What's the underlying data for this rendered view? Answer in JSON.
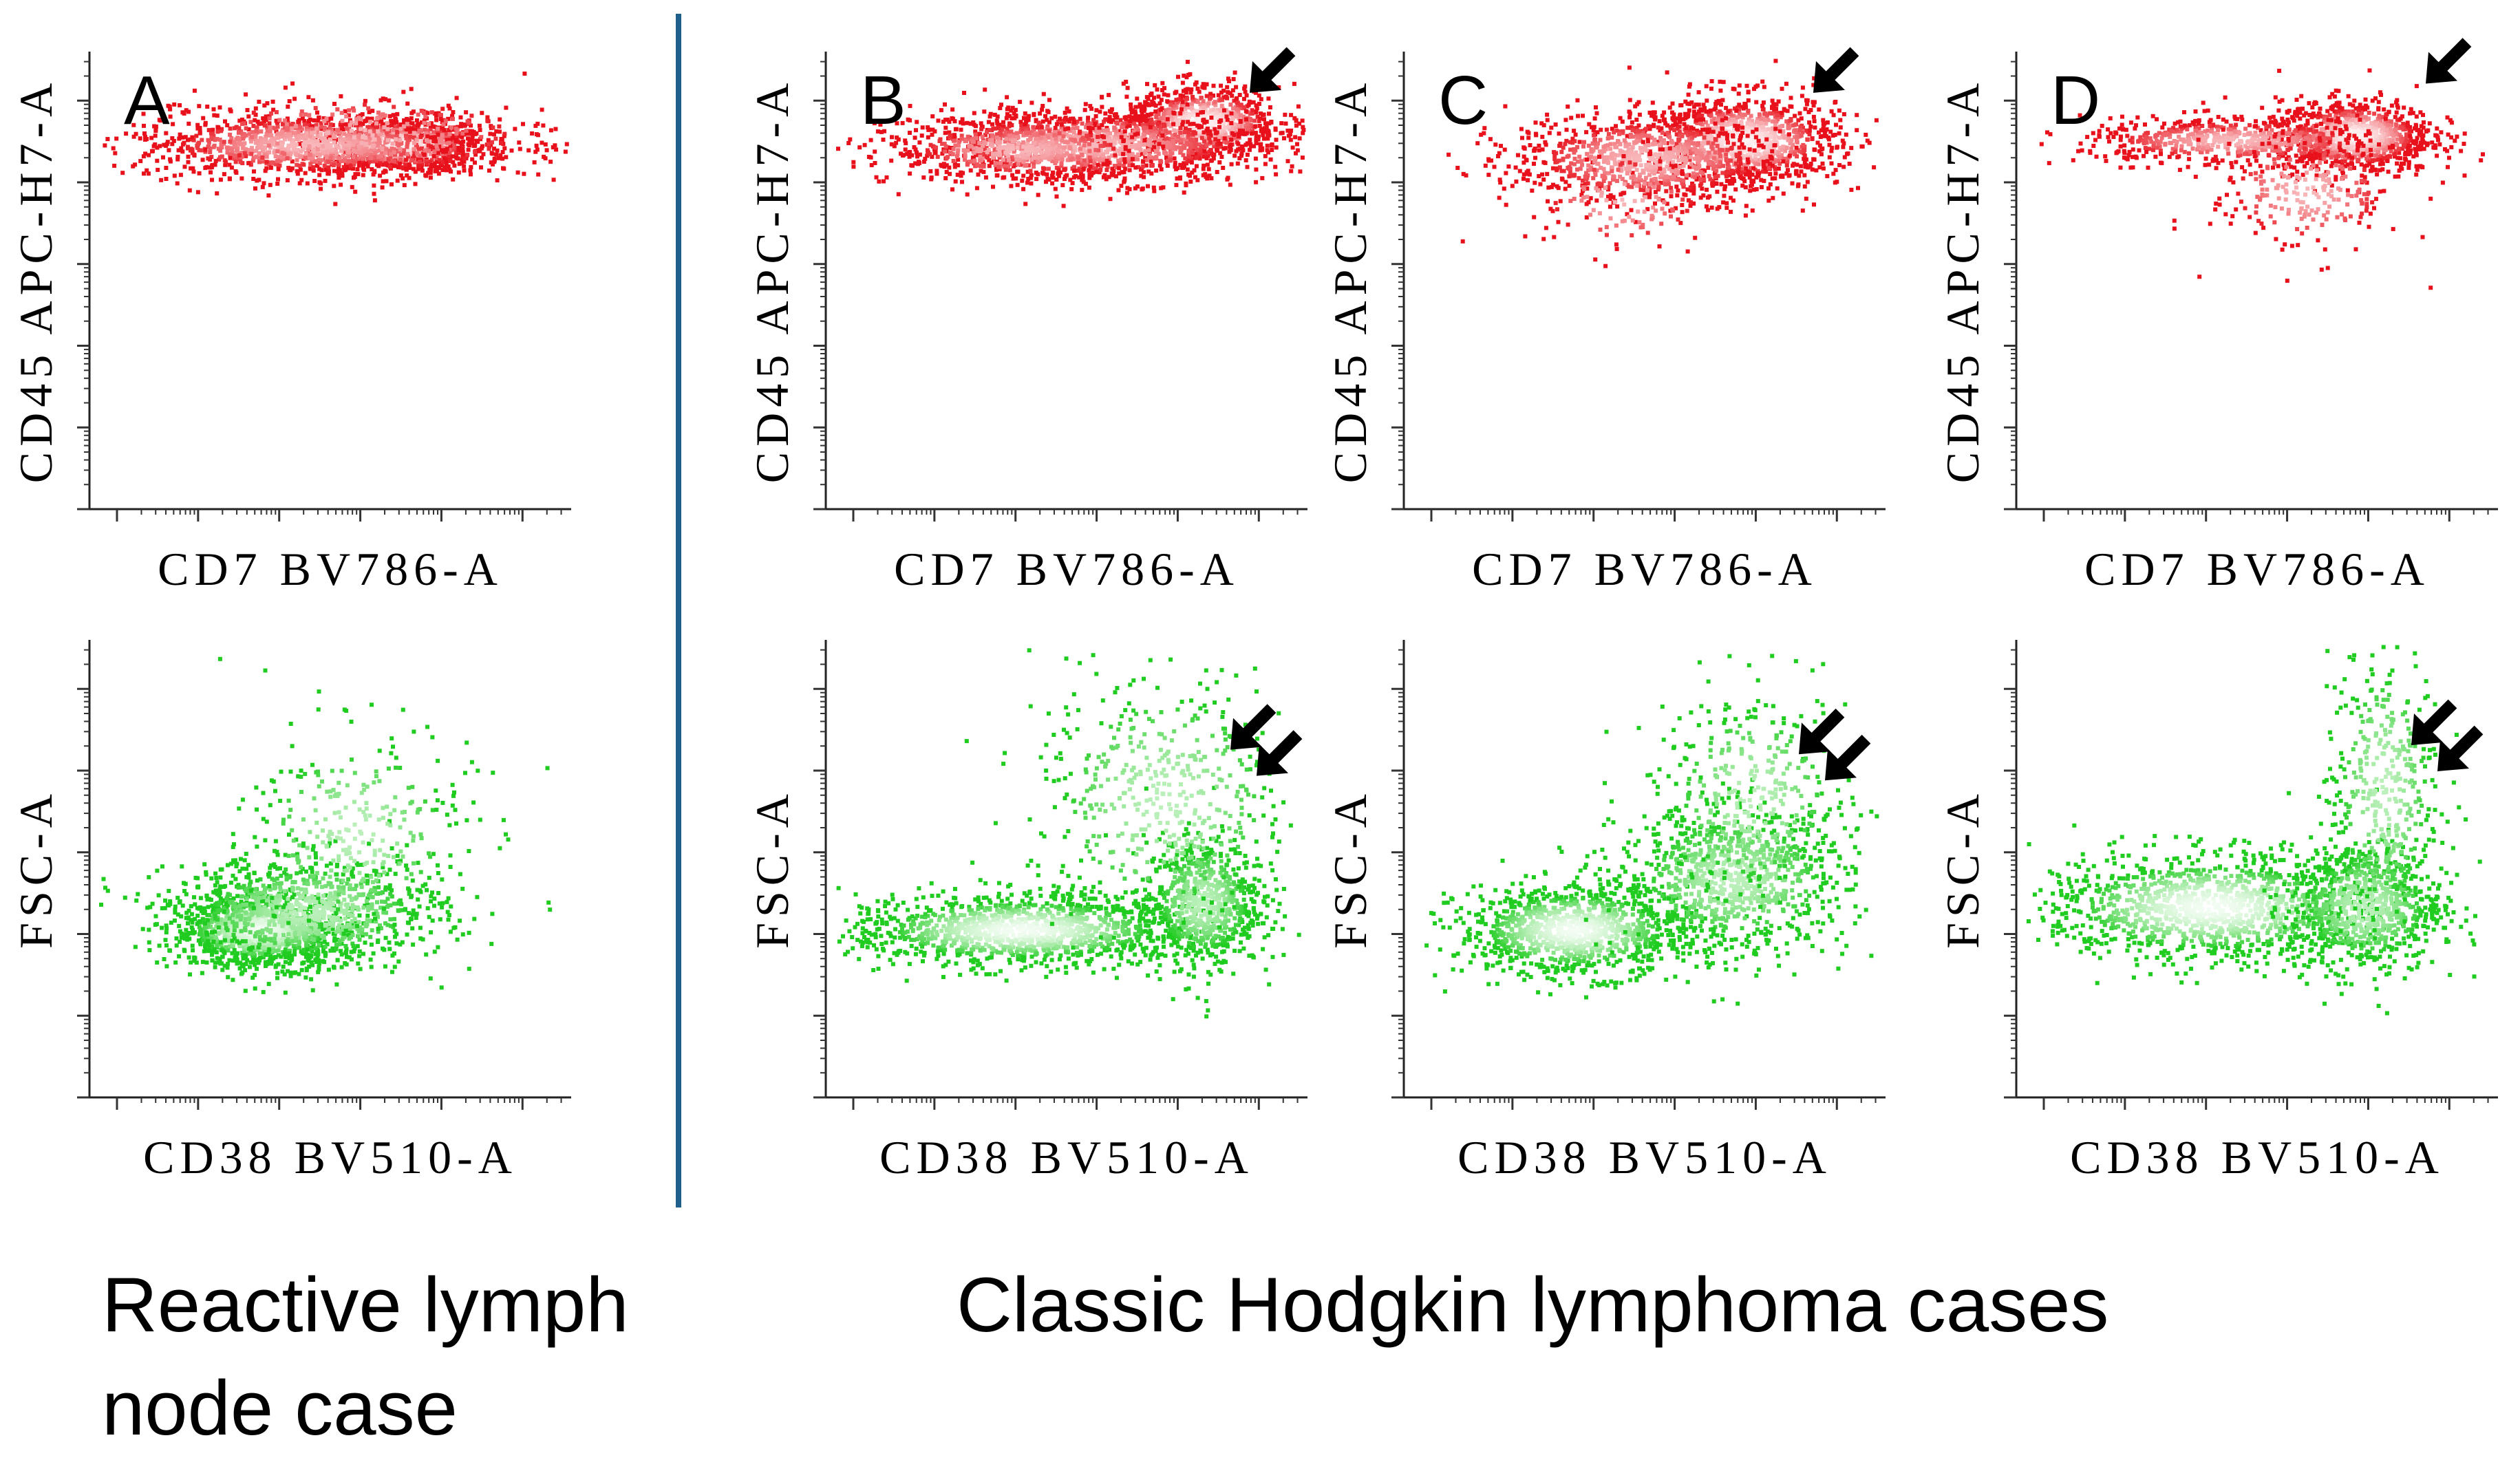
{
  "chart_data": [
    {
      "type": "scatter",
      "panel": "A",
      "letter": "A",
      "row": "top",
      "xlabel": "CD7 BV786-A",
      "ylabel": "CD45 APC-H7-A",
      "color": "#e8101a",
      "xlim": [
        0,
        100
      ],
      "ylim": [
        0,
        100
      ],
      "clusters": [
        {
          "cx": 64,
          "cy": 80,
          "sx": 9,
          "sy": 3,
          "n": 900
        },
        {
          "cx": 45,
          "cy": 80,
          "sx": 18,
          "sy": 3.5,
          "n": 1100
        },
        {
          "cx": 55,
          "cy": 82,
          "sx": 22,
          "sy": 5,
          "n": 300
        }
      ],
      "arrows": []
    },
    {
      "type": "scatter",
      "panel": "B",
      "letter": "B",
      "row": "top",
      "xlabel": "CD7 BV786-A",
      "ylabel": "CD45 APC-H7-A",
      "color": "#e8101a",
      "xlim": [
        0,
        100
      ],
      "ylim": [
        0,
        100
      ],
      "clusters": [
        {
          "cx": 78,
          "cy": 85,
          "sx": 8,
          "sy": 4,
          "n": 800
        },
        {
          "cx": 55,
          "cy": 80,
          "sx": 18,
          "sy": 4,
          "n": 1300
        },
        {
          "cx": 40,
          "cy": 79,
          "sx": 14,
          "sy": 3.5,
          "n": 500
        }
      ],
      "arrows": [
        {
          "x": 88,
          "y": 91,
          "double": false
        }
      ]
    },
    {
      "type": "scatter",
      "panel": "C",
      "letter": "C",
      "row": "top",
      "xlabel": "CD7 BV786-A",
      "ylabel": "CD45 APC-H7-A",
      "color": "#e8101a",
      "xlim": [
        0,
        100
      ],
      "ylim": [
        0,
        100
      ],
      "clusters": [
        {
          "cx": 70,
          "cy": 81,
          "sx": 10,
          "sy": 5,
          "n": 1000
        },
        {
          "cx": 50,
          "cy": 77,
          "sx": 14,
          "sy": 5,
          "n": 900
        },
        {
          "cx": 45,
          "cy": 68,
          "sx": 10,
          "sy": 6,
          "n": 120
        }
      ],
      "arrows": [
        {
          "x": 85,
          "y": 91,
          "double": false
        }
      ]
    },
    {
      "type": "scatter",
      "panel": "D",
      "letter": "D",
      "row": "top",
      "xlabel": "CD7 BV786-A",
      "ylabel": "CD45 APC-H7-A",
      "color": "#e8101a",
      "xlim": [
        0,
        100
      ],
      "ylim": [
        0,
        100
      ],
      "clusters": [
        {
          "cx": 70,
          "cy": 82,
          "sx": 8,
          "sy": 4,
          "n": 900
        },
        {
          "cx": 45,
          "cy": 81,
          "sx": 16,
          "sy": 2.5,
          "n": 600
        },
        {
          "cx": 60,
          "cy": 70,
          "sx": 10,
          "sy": 7,
          "n": 250
        }
      ],
      "arrows": [
        {
          "x": 85,
          "y": 93,
          "double": false
        }
      ]
    },
    {
      "type": "scatter",
      "panel": "A",
      "letter": "",
      "row": "bottom",
      "xlabel": "CD38 BV510-A",
      "ylabel": "FSC-A",
      "color": "#1fcc1f",
      "xlim": [
        0,
        100
      ],
      "ylim": [
        0,
        100
      ],
      "clusters": [
        {
          "cx": 35,
          "cy": 37,
          "sx": 9,
          "sy": 4,
          "n": 1100
        },
        {
          "cx": 45,
          "cy": 41,
          "sx": 14,
          "sy": 6,
          "n": 900
        },
        {
          "cx": 55,
          "cy": 58,
          "sx": 12,
          "sy": 12,
          "n": 300
        }
      ],
      "arrows": []
    },
    {
      "type": "scatter",
      "panel": "B",
      "letter": "",
      "row": "bottom",
      "xlabel": "CD38 BV510-A",
      "ylabel": "FSC-A",
      "color": "#1fcc1f",
      "xlim": [
        0,
        100
      ],
      "ylim": [
        0,
        100
      ],
      "clusters": [
        {
          "cx": 40,
          "cy": 37,
          "sx": 18,
          "sy": 4,
          "n": 1300
        },
        {
          "cx": 78,
          "cy": 43,
          "sx": 6,
          "sy": 7,
          "n": 700
        },
        {
          "cx": 70,
          "cy": 65,
          "sx": 14,
          "sy": 15,
          "n": 500
        }
      ],
      "arrows": [
        {
          "x": 84,
          "y": 76,
          "double": true
        }
      ]
    },
    {
      "type": "scatter",
      "panel": "C",
      "letter": "",
      "row": "bottom",
      "xlabel": "CD38 BV510-A",
      "ylabel": "FSC-A",
      "color": "#1fcc1f",
      "xlim": [
        0,
        100
      ],
      "ylim": [
        0,
        100
      ],
      "clusters": [
        {
          "cx": 35,
          "cy": 37,
          "sx": 12,
          "sy": 5,
          "n": 1100
        },
        {
          "cx": 68,
          "cy": 48,
          "sx": 12,
          "sy": 8,
          "n": 900
        },
        {
          "cx": 72,
          "cy": 66,
          "sx": 10,
          "sy": 12,
          "n": 350
        }
      ],
      "arrows": [
        {
          "x": 82,
          "y": 75,
          "double": true
        }
      ]
    },
    {
      "type": "scatter",
      "panel": "D",
      "letter": "",
      "row": "bottom",
      "xlabel": "CD38 BV510-A",
      "ylabel": "FSC-A",
      "color": "#1fcc1f",
      "xlim": [
        0,
        100
      ],
      "ylim": [
        0,
        100
      ],
      "clusters": [
        {
          "cx": 40,
          "cy": 42,
          "sx": 18,
          "sy": 6,
          "n": 1300
        },
        {
          "cx": 72,
          "cy": 42,
          "sx": 8,
          "sy": 7,
          "n": 700
        },
        {
          "cx": 76,
          "cy": 68,
          "sx": 6,
          "sy": 16,
          "n": 400
        }
      ],
      "arrows": [
        {
          "x": 82,
          "y": 77,
          "double": true
        }
      ]
    }
  ],
  "captions": {
    "left_line1": "Reactive lymph",
    "left_line2": "node case",
    "right": "Classic Hodgkin lymphoma cases"
  },
  "divider_color": "#1f5f8b"
}
